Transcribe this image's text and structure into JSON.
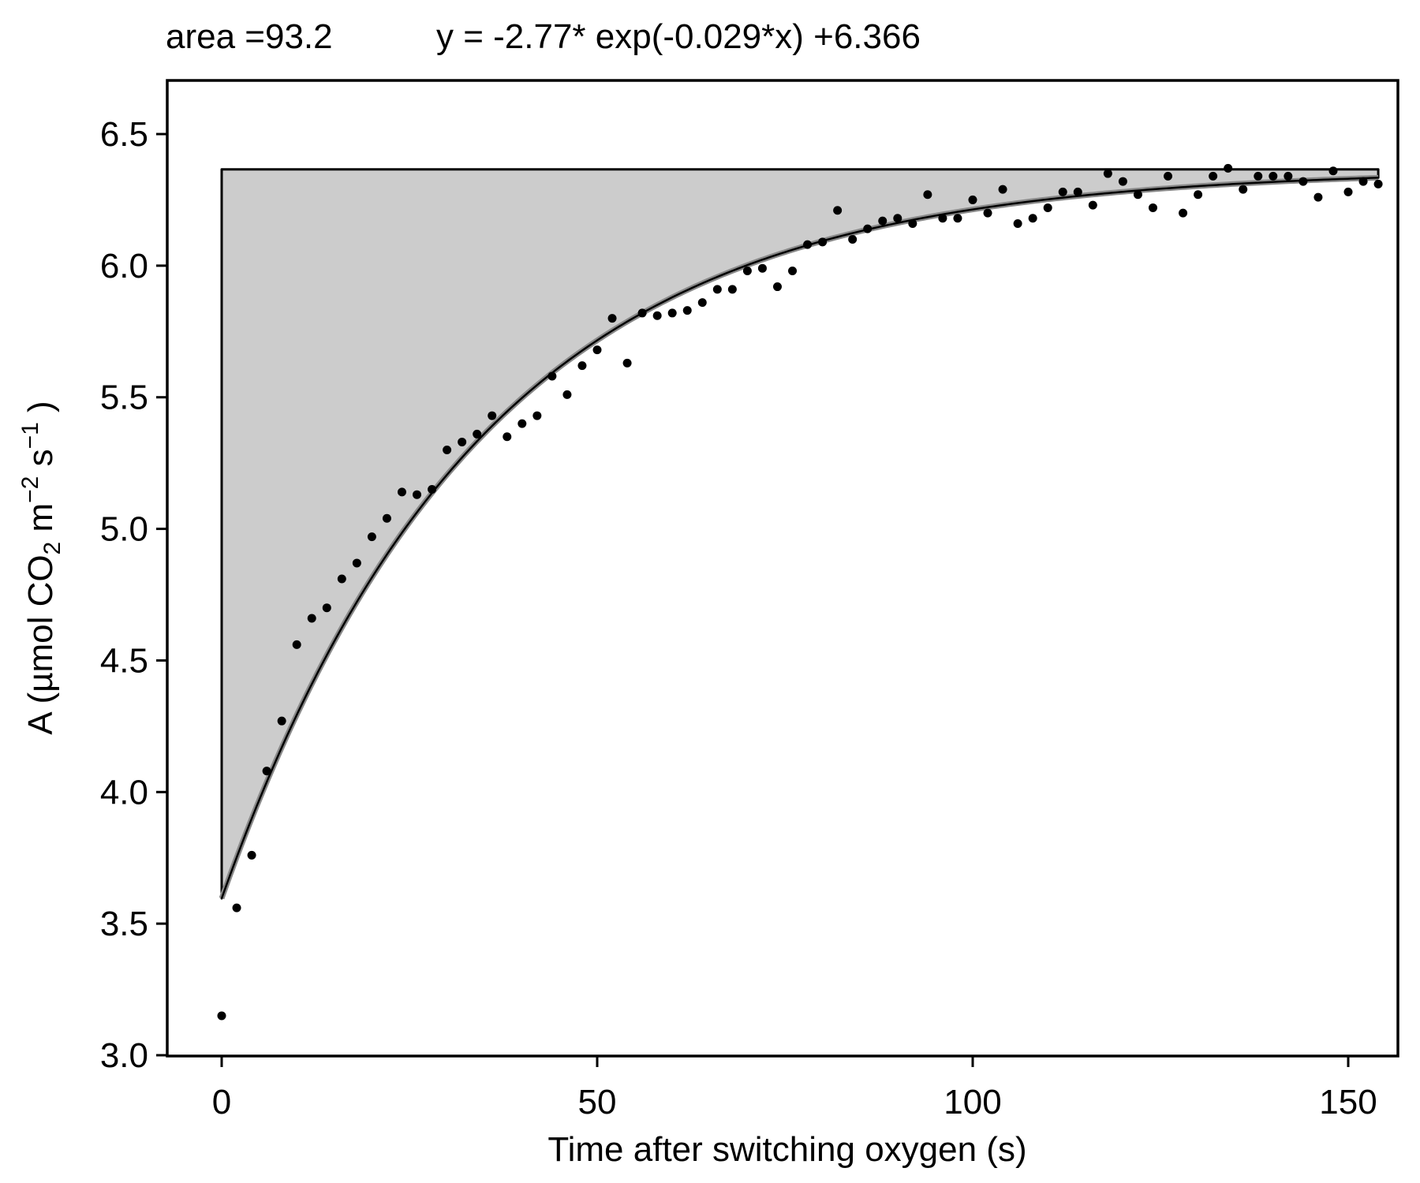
{
  "chart_data": {
    "type": "scatter",
    "title": "",
    "header": {
      "area_text": "area =93.2",
      "equation_text": "y = -2.77* exp(-0.029*x) +6.366"
    },
    "fit": {
      "a": -2.77,
      "b": -0.029,
      "c": 6.366
    },
    "xlabel": "Time after switching oxygen (s)",
    "ylabel": {
      "pre": "A (µmol CO",
      "sub": "2",
      "mid": " m",
      "sup1": "−2",
      "mid2": " s",
      "sup2": "−1",
      "post": " )"
    },
    "xlim": [
      -15,
      162
    ],
    "ylim": [
      3.0,
      6.7
    ],
    "xticks": [
      {
        "value": 0,
        "label": "0"
      },
      {
        "value": 50,
        "label": "50"
      },
      {
        "value": 100,
        "label": "100"
      },
      {
        "value": 150,
        "label": "150"
      }
    ],
    "yticks": [
      {
        "value": 3.0,
        "label": "3.0"
      },
      {
        "value": 3.5,
        "label": "3.5"
      },
      {
        "value": 4.0,
        "label": "4.0"
      },
      {
        "value": 4.5,
        "label": "4.5"
      },
      {
        "value": 5.0,
        "label": "5.0"
      },
      {
        "value": 5.5,
        "label": "5.5"
      },
      {
        "value": 6.0,
        "label": "6.0"
      },
      {
        "value": 6.5,
        "label": "6.5"
      }
    ],
    "grid": false,
    "fill_color": "#cccccc",
    "fit_line_color": "#000000",
    "points_color": "#000000",
    "x": [
      0,
      2,
      4,
      6,
      8,
      10,
      12,
      14,
      16,
      18,
      20,
      22,
      24,
      26,
      28,
      30,
      32,
      34,
      36,
      38,
      40,
      42,
      44,
      46,
      48,
      50,
      52,
      54,
      56,
      58,
      60,
      62,
      64,
      66,
      68,
      70,
      72,
      74,
      76,
      78,
      80,
      82,
      84,
      86,
      88,
      90,
      92,
      94,
      96,
      98,
      100,
      102,
      104,
      106,
      108,
      110,
      112,
      114,
      116,
      118,
      120,
      122,
      124,
      126,
      128,
      130,
      132,
      134,
      136,
      138,
      140,
      142,
      144,
      146,
      148,
      150,
      152,
      154
    ],
    "y": [
      3.15,
      3.56,
      3.76,
      4.08,
      4.27,
      4.56,
      4.66,
      4.7,
      4.81,
      4.87,
      4.97,
      5.04,
      5.14,
      5.13,
      5.15,
      5.3,
      5.33,
      5.36,
      5.43,
      5.35,
      5.4,
      5.43,
      5.58,
      5.51,
      5.62,
      5.68,
      5.8,
      5.63,
      5.82,
      5.81,
      5.82,
      5.83,
      5.86,
      5.91,
      5.91,
      5.98,
      5.99,
      5.92,
      5.98,
      6.08,
      6.09,
      6.21,
      6.1,
      6.14,
      6.17,
      6.18,
      6.16,
      6.27,
      6.18,
      6.18,
      6.25,
      6.2,
      6.29,
      6.16,
      6.18,
      6.22,
      6.28,
      6.28,
      6.23,
      6.35,
      6.32,
      6.27,
      6.22,
      6.34,
      6.2,
      6.27,
      6.34,
      6.37,
      6.29,
      6.34,
      6.34,
      6.34,
      6.32,
      6.26,
      6.36,
      6.28,
      6.32,
      6.31
    ]
  }
}
